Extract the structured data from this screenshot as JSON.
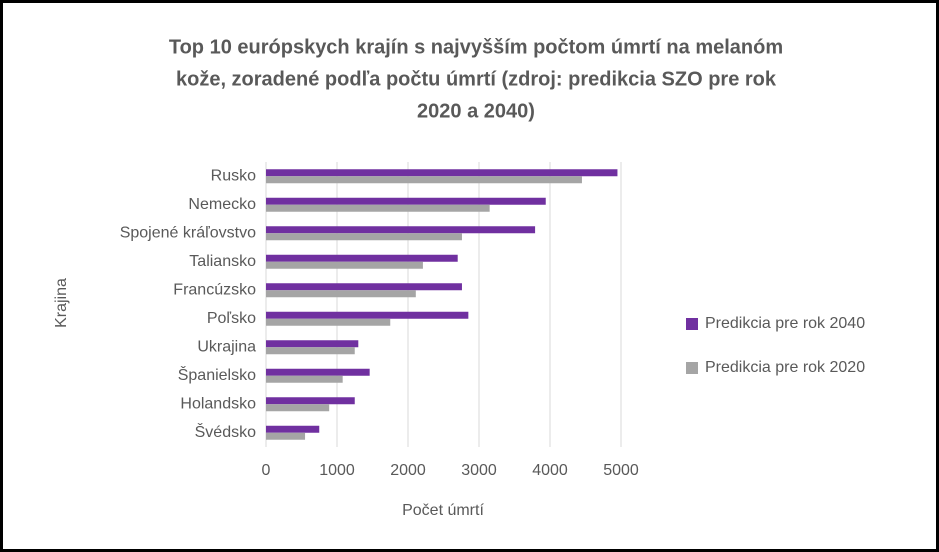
{
  "chart_data": {
    "type": "hbar",
    "title": [
      "Top 10 európskych krajín s najvyšším počtom úmrtí na melanóm",
      "kože, zoradené podľa počtu úmrtí (zdroj: predikcia SZO pre rok",
      "2020 a 2040)"
    ],
    "x_label": "Počet úmrtí",
    "y_label": "Krajina",
    "categories": [
      "Rusko",
      "Nemecko",
      "Spojené kráľovstvo",
      "Taliansko",
      "Francúzsko",
      "Poľsko",
      "Ukrajina",
      "Španielsko",
      "Holandsko",
      "Švédsko"
    ],
    "series": [
      {
        "name": "Predikcia pre rok 2040",
        "color": "#7030a0",
        "values": [
          4950,
          3940,
          3790,
          2700,
          2760,
          2850,
          1300,
          1460,
          1250,
          750
        ]
      },
      {
        "name": "Predikcia pre rok 2020",
        "color": "#a5a5a5",
        "values": [
          4450,
          3150,
          2760,
          2210,
          2110,
          1750,
          1250,
          1080,
          890,
          550
        ]
      }
    ],
    "xlim": [
      0,
      5000
    ],
    "xticks": [
      0,
      1000,
      2000,
      3000,
      4000,
      5000
    ],
    "grid": true,
    "legend": "right"
  }
}
